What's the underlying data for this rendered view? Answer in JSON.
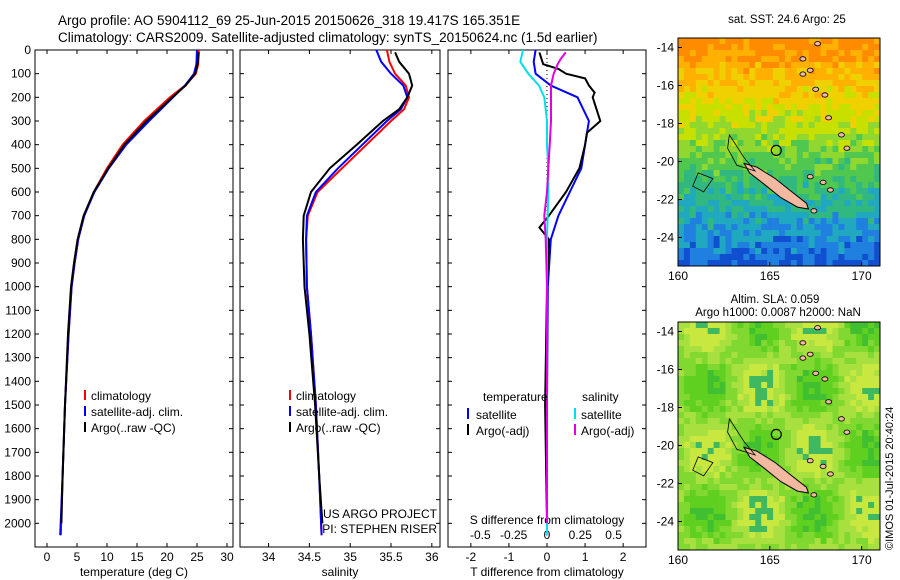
{
  "header": {
    "line1": "Argo profile: AO 5904112_69 25-Jun-2015 20150626_318 19.417S 165.351E",
    "line2": "Climatology: CARS2009. Satellite-adjusted climatology: synTS_20150624.nc (1.5d earlier)"
  },
  "watermark": "©IMOS 01-Jul-2015 20:40:24",
  "colors": {
    "climatology": "#ff0000",
    "satellite": "#0000ff",
    "argo": "#000000",
    "satellite_s": "#00e0e8",
    "argo_s": "#e000e0",
    "land": "#f2b8a0"
  },
  "chart_data": [
    {
      "type": "line",
      "id": "temperature",
      "xlabel": "temperature (deg C)",
      "xlim": [
        -2,
        31
      ],
      "ylim": [
        2100,
        0
      ],
      "xticks": [
        0,
        5,
        10,
        15,
        20,
        25,
        30
      ],
      "yticks": [
        0,
        100,
        200,
        300,
        400,
        500,
        600,
        700,
        800,
        900,
        1000,
        1100,
        1200,
        1300,
        1400,
        1500,
        1600,
        1700,
        1800,
        1900,
        2000
      ],
      "legend": [
        "climatology",
        "satellite-adj. clim.",
        "Argo(..raw -QC)"
      ],
      "series": [
        {
          "name": "climatology",
          "depth": [
            0,
            60,
            100,
            150,
            200,
            300,
            400,
            500,
            600,
            700,
            800,
            900,
            1000,
            1200,
            1500,
            1800,
            2050
          ],
          "values": [
            25.3,
            25.2,
            24.8,
            23.0,
            20.5,
            16.2,
            12.6,
            10.0,
            7.8,
            6.2,
            5.2,
            4.6,
            4.1,
            3.6,
            3.0,
            2.6,
            2.3
          ]
        },
        {
          "name": "satellite-adj. clim.",
          "depth": [
            0,
            60,
            100,
            150,
            200,
            300,
            400,
            500,
            600,
            700,
            800,
            900,
            1000,
            1200,
            1500,
            1800,
            2050
          ],
          "values": [
            25.0,
            24.9,
            24.5,
            23.0,
            21.0,
            17.0,
            13.2,
            10.3,
            7.9,
            6.2,
            5.2,
            4.6,
            4.1,
            3.6,
            3.0,
            2.6,
            2.2
          ]
        },
        {
          "name": "Argo(..raw -QC)",
          "depth": [
            10,
            60,
            100,
            150,
            200,
            300,
            400,
            500,
            600,
            700,
            800,
            900,
            1000,
            1200,
            1500,
            1800,
            2000
          ],
          "values": [
            25.3,
            25.1,
            24.7,
            23.1,
            20.9,
            16.6,
            12.9,
            10.2,
            7.8,
            6.1,
            5.1,
            4.5,
            4.0,
            3.5,
            3.0,
            2.6,
            2.4
          ]
        }
      ]
    },
    {
      "type": "line",
      "id": "salinity",
      "xlabel": "salinity",
      "xlim": [
        33.65,
        36.1
      ],
      "ylim": [
        2100,
        0
      ],
      "xticks": [
        34,
        34.5,
        35,
        35.5,
        36
      ],
      "legend": [
        "climatology",
        "satellite-adj. clim.",
        "Argo(..raw -QC)"
      ],
      "annotation": [
        "US ARGO PROJECT",
        "PI: STEPHEN RISER"
      ],
      "series": [
        {
          "name": "climatology",
          "depth": [
            0,
            50,
            100,
            150,
            200,
            250,
            300,
            400,
            500,
            600,
            700,
            800,
            1000,
            1200,
            1500,
            1800,
            2050
          ],
          "values": [
            35.45,
            35.48,
            35.55,
            35.68,
            35.72,
            35.66,
            35.5,
            35.2,
            34.9,
            34.6,
            34.48,
            34.46,
            34.47,
            34.52,
            34.58,
            34.62,
            34.65
          ]
        },
        {
          "name": "satellite-adj. clim.",
          "depth": [
            0,
            50,
            100,
            150,
            200,
            250,
            300,
            400,
            500,
            600,
            700,
            800,
            1000,
            1200,
            1500,
            1800,
            2050
          ],
          "values": [
            35.32,
            35.38,
            35.5,
            35.65,
            35.7,
            35.62,
            35.45,
            35.15,
            34.85,
            34.58,
            34.47,
            34.46,
            34.47,
            34.52,
            34.58,
            34.62,
            34.65
          ]
        },
        {
          "name": "Argo(..raw -QC)",
          "depth": [
            10,
            50,
            100,
            150,
            175,
            200,
            250,
            300,
            400,
            500,
            600,
            700,
            800,
            1000,
            1200,
            1500,
            1800,
            2000
          ],
          "values": [
            35.55,
            35.6,
            35.72,
            35.76,
            35.73,
            35.7,
            35.6,
            35.4,
            35.08,
            34.75,
            34.52,
            34.43,
            34.42,
            34.44,
            34.5,
            34.57,
            34.62,
            34.66
          ]
        }
      ]
    },
    {
      "type": "line",
      "id": "differences",
      "xlabel": "T difference from climatology",
      "xlabel2": "S difference from climatology",
      "xlim": [
        -2.6,
        2.6
      ],
      "ylim": [
        2100,
        0
      ],
      "xticks": [
        -2,
        -1,
        0,
        1,
        2
      ],
      "xticks2": [
        "-0.5",
        "-0.25",
        "0",
        "0.25",
        "0.5"
      ],
      "legend_temperature": {
        "title": "temperature",
        "items": [
          "satellite",
          "Argo(-adj)"
        ]
      },
      "legend_salinity": {
        "title": "salinity",
        "items": [
          "satellite",
          "Argo(-adj)"
        ]
      },
      "series": [
        {
          "name": "satellite",
          "group": "temperature",
          "depth": [
            0,
            50,
            100,
            150,
            200,
            300,
            400,
            500,
            600,
            700,
            800,
            1000,
            1500,
            2050
          ],
          "values": [
            -0.3,
            -0.35,
            -0.3,
            0.1,
            0.8,
            1.1,
            1.0,
            0.9,
            0.6,
            0.3,
            0.1,
            0.02,
            0.0,
            0.0
          ]
        },
        {
          "name": "Argo(-adj)",
          "group": "temperature",
          "depth": [
            10,
            60,
            80,
            100,
            120,
            150,
            180,
            200,
            250,
            300,
            350,
            400,
            500,
            600,
            700,
            750,
            800,
            1000,
            1500,
            2000
          ],
          "values": [
            -0.2,
            -0.1,
            0.3,
            0.5,
            1.0,
            1.1,
            1.25,
            1.2,
            1.3,
            1.4,
            1.05,
            1.0,
            0.85,
            0.5,
            0.05,
            -0.2,
            0.05,
            0.0,
            -0.05,
            0.0
          ]
        },
        {
          "name": "satellite",
          "group": "salinity",
          "depth": [
            0,
            50,
            100,
            150,
            200,
            300,
            400,
            500,
            600,
            800,
            1000,
            1500,
            2050
          ],
          "values": [
            -0.18,
            -0.2,
            -0.14,
            -0.06,
            -0.02,
            0.0,
            0.0,
            0.01,
            0.01,
            0.0,
            0.0,
            0.0,
            0.0
          ]
        },
        {
          "name": "Argo(-adj)",
          "group": "salinity",
          "depth": [
            10,
            40,
            60,
            100,
            150,
            200,
            300,
            400,
            500,
            600,
            700,
            800,
            1000,
            1500,
            2000
          ],
          "values": [
            0.14,
            0.1,
            0.08,
            0.05,
            0.03,
            0.03,
            0.03,
            0.02,
            0.01,
            0.0,
            -0.02,
            -0.01,
            0.0,
            0.0,
            0.0
          ]
        }
      ]
    },
    {
      "type": "heatmap",
      "id": "sst_map",
      "title": "sat. SST: 24.6  Argo: 25",
      "xlim": [
        160,
        171
      ],
      "ylim": [
        -25.5,
        -13.5
      ],
      "xticks": [
        160,
        165,
        170
      ],
      "yticks": [
        -14,
        -16,
        -18,
        -20,
        -22,
        -24
      ]
    },
    {
      "type": "heatmap",
      "id": "sla_map",
      "title": "Altim. SLA: 0.059",
      "subtitle": "Argo h1000: 0.0087 h2000: NaN",
      "xlim": [
        160,
        171
      ],
      "ylim": [
        -25.5,
        -13.5
      ],
      "xticks": [
        160,
        165,
        170
      ],
      "yticks": [
        -14,
        -16,
        -18,
        -20,
        -22,
        -24
      ]
    }
  ]
}
